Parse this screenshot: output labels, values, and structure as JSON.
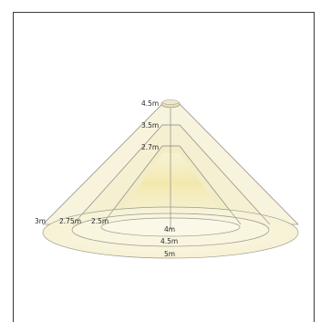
{
  "diagram": {
    "height_labels": [
      {
        "id": "h45",
        "text": "4.5m"
      },
      {
        "id": "h35",
        "text": "3.5m"
      },
      {
        "id": "h27",
        "text": "2.7m"
      }
    ],
    "radius_labels": [
      {
        "id": "r3",
        "text": "3m"
      },
      {
        "id": "r275",
        "text": "2.75m"
      },
      {
        "id": "r25",
        "text": "2.5m"
      }
    ],
    "diameter_labels": [
      {
        "id": "d4",
        "text": "4m"
      },
      {
        "id": "d45",
        "text": "4.5m"
      },
      {
        "id": "d5",
        "text": "5m"
      }
    ],
    "colors": {
      "beam": "#f5f2d4",
      "glow": "#f2e7a6",
      "line": "#8a8a8a",
      "fixture": "#e4dfb8"
    }
  }
}
